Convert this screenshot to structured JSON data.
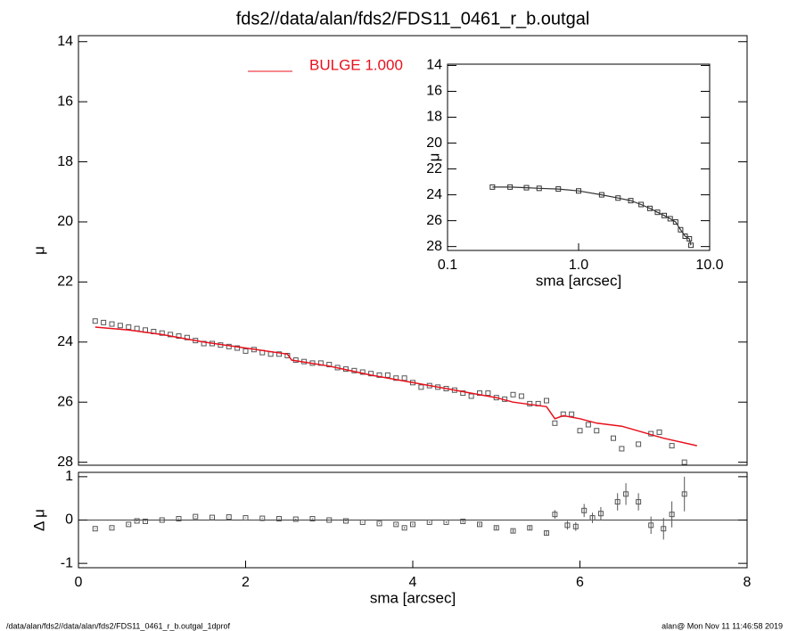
{
  "chart_data": [
    {
      "type": "scatter",
      "title": "fds2//data/alan/fds2/FDS11_0461_r_b.outgal",
      "ylabel": "μ",
      "ylim": [
        28.1,
        13.8
      ],
      "yticks": [
        14,
        16,
        18,
        20,
        22,
        24,
        26,
        28
      ],
      "xlim": [
        0,
        8
      ],
      "series": [
        {
          "style": "points",
          "color": "#555555",
          "x": [
            0.2,
            0.3,
            0.4,
            0.5,
            0.6,
            0.7,
            0.8,
            0.9,
            1.0,
            1.1,
            1.2,
            1.3,
            1.4,
            1.5,
            1.6,
            1.7,
            1.8,
            1.9,
            2.0,
            2.1,
            2.2,
            2.3,
            2.4,
            2.5,
            2.6,
            2.7,
            2.8,
            2.9,
            3.0,
            3.1,
            3.2,
            3.3,
            3.4,
            3.5,
            3.6,
            3.7,
            3.8,
            3.9,
            4.0,
            4.1,
            4.2,
            4.3,
            4.4,
            4.5,
            4.6,
            4.7,
            4.8,
            4.9,
            5.0,
            5.1,
            5.2,
            5.3,
            5.4,
            5.5,
            5.6,
            5.7,
            5.8,
            5.9,
            6.0,
            6.1,
            6.2,
            6.4,
            6.5,
            6.7,
            6.85,
            6.95,
            7.1,
            7.25
          ],
          "values": [
            23.3,
            23.35,
            23.4,
            23.45,
            23.5,
            23.55,
            23.6,
            23.65,
            23.7,
            23.75,
            23.8,
            23.85,
            23.95,
            24.05,
            24.05,
            24.1,
            24.15,
            24.2,
            24.3,
            24.25,
            24.35,
            24.4,
            24.4,
            24.45,
            24.6,
            24.65,
            24.7,
            24.7,
            24.75,
            24.85,
            24.9,
            24.95,
            25.0,
            25.05,
            25.1,
            25.1,
            25.2,
            25.2,
            25.35,
            25.5,
            25.45,
            25.5,
            25.55,
            25.6,
            25.7,
            25.8,
            25.7,
            25.7,
            25.85,
            25.9,
            25.75,
            25.8,
            26.05,
            26.05,
            25.95,
            26.7,
            26.4,
            26.4,
            26.95,
            26.75,
            26.95,
            27.2,
            27.55,
            27.4,
            27.05,
            27.0,
            27.45,
            28.0
          ]
        },
        {
          "style": "line",
          "name": "BULGE  1.000",
          "color": "#e8101c",
          "x": [
            0.2,
            0.6,
            1.0,
            1.5,
            2.0,
            2.5,
            2.55,
            3.0,
            3.5,
            4.0,
            4.5,
            5.0,
            5.2,
            5.6,
            5.7,
            5.8,
            6.0,
            6.2,
            6.5,
            7.0,
            7.4
          ],
          "values": [
            23.5,
            23.6,
            23.75,
            24.0,
            24.2,
            24.4,
            24.6,
            24.8,
            25.1,
            25.35,
            25.6,
            25.85,
            26.0,
            26.15,
            26.55,
            26.45,
            26.55,
            26.7,
            26.8,
            27.2,
            27.45
          ]
        }
      ]
    },
    {
      "type": "errorbar",
      "ylabel": "Δ μ",
      "xlabel": "sma [arcsec]",
      "xlim": [
        0,
        8
      ],
      "xticks": [
        0,
        2,
        4,
        6,
        8
      ],
      "ylim": [
        -1.1,
        1.1
      ],
      "yticks": [
        -1,
        0,
        1
      ],
      "hline": 0,
      "series": [
        {
          "color": "#555555",
          "x": [
            0.2,
            0.4,
            0.6,
            0.7,
            0.8,
            1.0,
            1.2,
            1.4,
            1.6,
            1.8,
            2.0,
            2.2,
            2.4,
            2.6,
            2.8,
            3.0,
            3.2,
            3.4,
            3.6,
            3.8,
            3.9,
            4.0,
            4.2,
            4.4,
            4.6,
            4.8,
            5.0,
            5.2,
            5.4,
            5.6,
            5.7,
            5.85,
            5.95,
            6.05,
            6.15,
            6.25,
            6.45,
            6.55,
            6.7,
            6.85,
            7.0,
            7.1,
            7.25
          ],
          "values": [
            -0.2,
            -0.18,
            -0.1,
            -0.02,
            -0.03,
            0.0,
            0.03,
            0.08,
            0.06,
            0.07,
            0.05,
            0.04,
            0.03,
            0.02,
            0.03,
            0.0,
            -0.02,
            -0.05,
            -0.08,
            -0.1,
            -0.18,
            -0.1,
            -0.05,
            -0.05,
            -0.03,
            -0.1,
            -0.18,
            -0.25,
            -0.18,
            -0.3,
            0.13,
            -0.12,
            -0.15,
            0.22,
            0.05,
            0.15,
            0.42,
            0.6,
            0.42,
            -0.12,
            -0.2,
            0.13,
            0.6
          ],
          "errors": [
            0.01,
            0.01,
            0.01,
            0.01,
            0.01,
            0.01,
            0.01,
            0.01,
            0.01,
            0.01,
            0.01,
            0.01,
            0.01,
            0.01,
            0.01,
            0.01,
            0.01,
            0.01,
            0.01,
            0.02,
            0.02,
            0.02,
            0.02,
            0.02,
            0.03,
            0.03,
            0.04,
            0.04,
            0.05,
            0.06,
            0.1,
            0.1,
            0.1,
            0.15,
            0.12,
            0.15,
            0.2,
            0.25,
            0.2,
            0.2,
            0.25,
            0.3,
            0.4
          ]
        }
      ]
    },
    {
      "type": "scatter",
      "ylabel": "μ",
      "xlabel": "sma [arcsec]",
      "xlog": true,
      "xlim": [
        0.1,
        10
      ],
      "xticks": [
        0.1,
        {
          "value": 1,
          "label": "1.0"
        },
        {
          "value": 10,
          "label": "10.0"
        }
      ],
      "ylim": [
        28.3,
        13.9
      ],
      "yticks": [
        14,
        16,
        18,
        20,
        22,
        24,
        26,
        28
      ],
      "series": [
        {
          "style": "points-line",
          "color": "#333333",
          "x": [
            0.22,
            0.3,
            0.4,
            0.5,
            0.7,
            1.0,
            1.5,
            2.0,
            2.5,
            3.0,
            3.5,
            4.0,
            4.5,
            5.0,
            5.5,
            6.0,
            6.5,
            7.0,
            7.2
          ],
          "values": [
            23.4,
            23.4,
            23.45,
            23.5,
            23.55,
            23.7,
            24.0,
            24.25,
            24.45,
            24.75,
            25.05,
            25.35,
            25.6,
            25.85,
            26.1,
            26.7,
            27.2,
            27.4,
            27.9
          ]
        }
      ]
    }
  ],
  "footer": {
    "left": "/data/alan/fds2//data/alan/fds2/FDS11_0461_r_b.outgal_1dprof",
    "right": "alan@  Mon Nov 11 11:46:58 2019"
  }
}
